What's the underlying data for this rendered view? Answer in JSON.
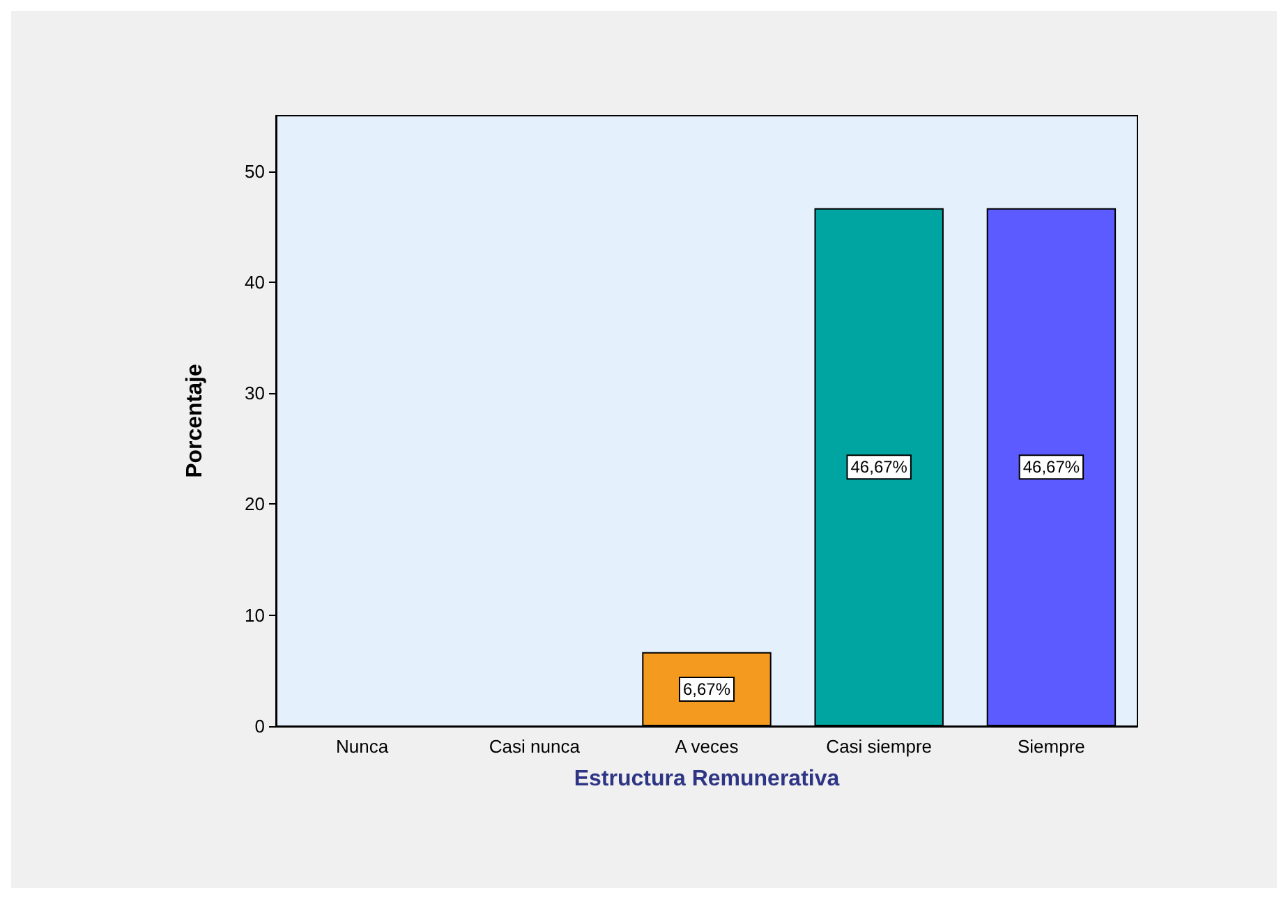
{
  "chart_data": {
    "type": "bar",
    "xlabel": "Estructura Remunerativa",
    "ylabel": "Porcentaje",
    "categories": [
      "Nunca",
      "Casi nunca",
      "A veces",
      "Casi siempre",
      "Siempre"
    ],
    "values": [
      0,
      0,
      6.67,
      46.67,
      46.67
    ],
    "colors": [
      "#f39a1f",
      "#f39a1f",
      "#f39a1f",
      "#00a5a2",
      "#5b5bff"
    ],
    "value_labels": [
      null,
      null,
      "6,67%",
      "46,67%",
      "46,67%"
    ],
    "ylim": [
      0,
      55
    ],
    "yticks": [
      0,
      10,
      20,
      30,
      40,
      50
    ],
    "grid": false
  }
}
